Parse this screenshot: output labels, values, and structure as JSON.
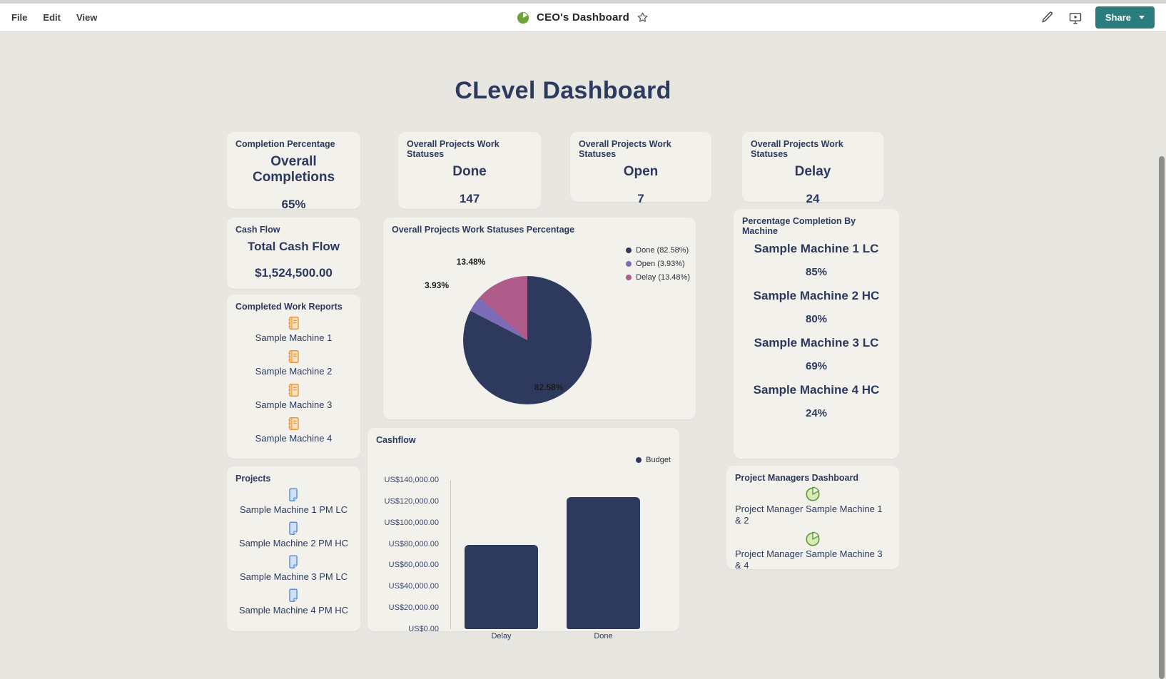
{
  "topbar": {
    "menus": [
      {
        "label": "File"
      },
      {
        "label": "Edit"
      },
      {
        "label": "View"
      }
    ],
    "app_title": "CEO's Dashboard",
    "share_label": "Share"
  },
  "page": {
    "title": "CLevel Dashboard"
  },
  "colors": {
    "share_button_teal": "#2a7d7e",
    "text_navy": "#2b3a5e",
    "page_background": "#e8e6e1",
    "card_background": "#f3f1ec",
    "report_icon_orange": "#e8963b",
    "project_icon_blue": "#5b8fd6",
    "pm_icon_green": "#5f9a32"
  },
  "stat_cards": [
    {
      "header": "Completion Percentage",
      "label": "Overall Completions",
      "value": "65%"
    },
    {
      "header": "Overall Projects Work Statuses",
      "label": "Done",
      "value": "147"
    },
    {
      "header": "Overall Projects Work Statuses",
      "label": "Open",
      "value": "7"
    },
    {
      "header": "Overall Projects Work Statuses",
      "label": "Delay",
      "value": "24"
    }
  ],
  "cash_flow": {
    "header": "Cash Flow",
    "label": "Total Cash Flow",
    "value": "$1,524,500.00"
  },
  "completed_work_reports": {
    "header": "Completed Work Reports",
    "items": [
      "Sample Machine 1",
      "Sample Machine 2",
      "Sample Machine 3",
      "Sample Machine 4"
    ]
  },
  "projects": {
    "header": "Projects",
    "items": [
      "Sample Machine 1 PM LC",
      "Sample Machine 2 PM HC",
      "Sample Machine 3 PM LC",
      "Sample Machine 4 PM HC"
    ]
  },
  "machine_completion": {
    "header": "Percentage Completion By Machine",
    "items": [
      {
        "name": "Sample Machine 1 LC",
        "value": "85%"
      },
      {
        "name": "Sample Machine 2 HC",
        "value": "80%"
      },
      {
        "name": "Sample Machine 3 LC",
        "value": "69%"
      },
      {
        "name": "Sample Machine 4 HC",
        "value": "24%"
      }
    ]
  },
  "pm_dashboard": {
    "header": "Project Managers Dashboard",
    "items": [
      "Project Manager Sample Machine 1 & 2",
      "Project Manager Sample Machine 3 & 4"
    ]
  },
  "chart_data": [
    {
      "type": "pie",
      "title": "Overall Projects Work Statuses Percentage",
      "labels": [
        "Done",
        "Open",
        "Delay"
      ],
      "values": [
        82.58,
        3.93,
        13.48
      ],
      "colors": [
        "#2d3a5e",
        "#7c6cb8",
        "#b05c8a"
      ],
      "slice_labels": [
        "82.58%",
        "3.93%",
        "13.48%"
      ],
      "legend": [
        "Done (82.58%)",
        "Open (3.93%)",
        "Delay (13.48%)"
      ],
      "legend_position": "right"
    },
    {
      "type": "bar",
      "title": "Cashflow",
      "categories": [
        "Delay",
        "Done"
      ],
      "series": [
        {
          "name": "Budget",
          "values": [
            79000,
            124000
          ]
        }
      ],
      "bar_color": "#2d3a5e",
      "ylabel": "",
      "xlabel": "",
      "ylim": [
        0,
        140000
      ],
      "yticks": [
        "US$140,000.00",
        "US$120,000.00",
        "US$100,000.00",
        "US$80,000.00",
        "US$60,000.00",
        "US$40,000.00",
        "US$20,000.00",
        "US$0.00"
      ],
      "legend": [
        "Budget"
      ],
      "legend_position": "top-right",
      "grid": false
    }
  ]
}
